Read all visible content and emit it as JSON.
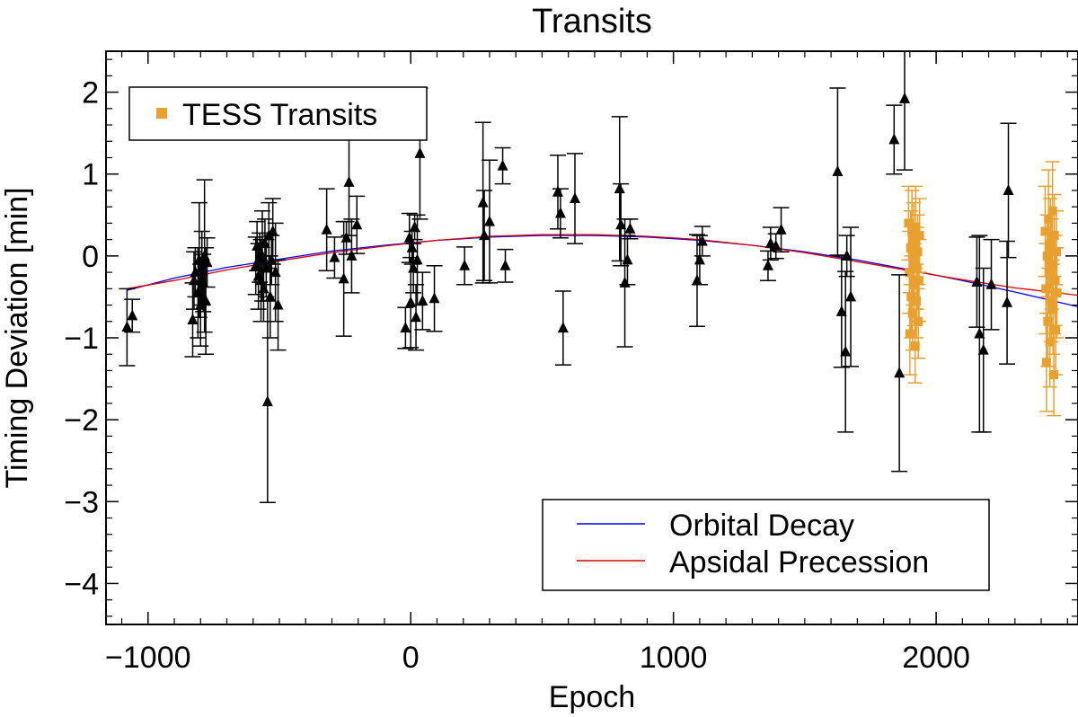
{
  "chart_data": {
    "type": "scatter",
    "title": "Transits",
    "xlabel": "Epoch",
    "ylabel": "Timing Deviation [min]",
    "xlim": [
      -1160,
      2540
    ],
    "ylim": [
      -4.5,
      2.5
    ],
    "xticks": [
      -1000,
      0,
      1000,
      2000
    ],
    "xtick_labels": [
      "−1000",
      "0",
      "1000",
      "2000"
    ],
    "xminor_step": 100,
    "yticks": [
      -4,
      -3,
      -2,
      -1,
      0,
      1,
      2
    ],
    "ytick_labels": [
      "−4",
      "−3",
      "−2",
      "−1",
      "0",
      "1",
      "2"
    ],
    "yminor_step": 0.2,
    "legend_top": {
      "label": "TESS Transits",
      "color": "#E8A030",
      "position": "top-left"
    },
    "legend_bottom": {
      "position": "bottom-right",
      "entries": [
        {
          "label": "Orbital Decay",
          "color": "#0000EE"
        },
        {
          "label": "Apsidal Precession",
          "color": "#DD0000"
        }
      ]
    },
    "series": [
      {
        "name": "Orbital Decay",
        "color": "#0000EE",
        "kind": "curve",
        "x": [
          -1080,
          -900,
          -700,
          -500,
          -300,
          -100,
          100,
          300,
          500,
          700,
          900,
          1100,
          1300,
          1500,
          1700,
          1900,
          2100,
          2300,
          2540
        ],
        "y": [
          -0.42,
          -0.27,
          -0.14,
          -0.04,
          0.06,
          0.13,
          0.19,
          0.23,
          0.25,
          0.25,
          0.23,
          0.19,
          0.13,
          0.05,
          -0.05,
          -0.17,
          -0.3,
          -0.44,
          -0.62
        ]
      },
      {
        "name": "Apsidal Precession",
        "color": "#DD0000",
        "kind": "curve",
        "x": [
          -1080,
          -900,
          -700,
          -500,
          -300,
          -100,
          100,
          300,
          500,
          700,
          900,
          1100,
          1300,
          1500,
          1700,
          1900,
          2100,
          2300,
          2540
        ],
        "y": [
          -0.4,
          -0.3,
          -0.17,
          -0.06,
          0.04,
          0.12,
          0.19,
          0.24,
          0.26,
          0.26,
          0.24,
          0.2,
          0.13,
          0.04,
          -0.07,
          -0.18,
          -0.29,
          -0.39,
          -0.48
        ]
      },
      {
        "name": "Transits",
        "color": "#000000",
        "marker": "triangle",
        "points": [
          {
            "x": -1080,
            "y": -0.87,
            "err": 0.47
          },
          {
            "x": -1060,
            "y": -0.73,
            "err": 0.2
          },
          {
            "x": -830,
            "y": -0.78,
            "err": 0.45
          },
          {
            "x": -825,
            "y": -0.3,
            "err": 0.35
          },
          {
            "x": -820,
            "y": -0.2,
            "err": 0.3
          },
          {
            "x": -810,
            "y": -0.45,
            "err": 0.55
          },
          {
            "x": -805,
            "y": -0.05,
            "err": 0.7
          },
          {
            "x": -800,
            "y": -0.6,
            "err": 0.5
          },
          {
            "x": -795,
            "y": -0.15,
            "err": 0.45
          },
          {
            "x": -790,
            "y": -0.33,
            "err": 0.35
          },
          {
            "x": -785,
            "y": 0.0,
            "err": 0.93
          },
          {
            "x": -780,
            "y": -0.55,
            "err": 0.65
          },
          {
            "x": -775,
            "y": -0.08,
            "err": 0.3
          },
          {
            "x": -590,
            "y": -0.12,
            "err": 0.35
          },
          {
            "x": -585,
            "y": 0.12,
            "err": 0.3
          },
          {
            "x": -580,
            "y": -0.25,
            "err": 0.4
          },
          {
            "x": -575,
            "y": -0.02,
            "err": 0.3
          },
          {
            "x": -570,
            "y": -0.3,
            "err": 0.5
          },
          {
            "x": -565,
            "y": 0.0,
            "err": 0.55
          },
          {
            "x": -560,
            "y": -0.4,
            "err": 0.4
          },
          {
            "x": -555,
            "y": 0.15,
            "err": 0.3
          },
          {
            "x": -550,
            "y": -0.15,
            "err": 0.35
          },
          {
            "x": -545,
            "y": -1.78,
            "err": 1.23
          },
          {
            "x": -540,
            "y": 0.25,
            "err": 0.4
          },
          {
            "x": -535,
            "y": -0.5,
            "err": 0.5
          },
          {
            "x": -530,
            "y": -0.05,
            "err": 0.3
          },
          {
            "x": -525,
            "y": 0.3,
            "err": 0.4
          },
          {
            "x": -515,
            "y": -0.2,
            "err": 0.6
          },
          {
            "x": -505,
            "y": -0.6,
            "err": 0.55
          },
          {
            "x": -320,
            "y": 0.32,
            "err": 0.5
          },
          {
            "x": -290,
            "y": -0.02,
            "err": 0.25
          },
          {
            "x": -255,
            "y": -0.28,
            "err": 0.7
          },
          {
            "x": -245,
            "y": 0.22,
            "err": 0.2
          },
          {
            "x": -235,
            "y": 0.9,
            "err": 0.65
          },
          {
            "x": -225,
            "y": 0.0,
            "err": 0.45
          },
          {
            "x": -205,
            "y": 0.38,
            "err": 0.35
          },
          {
            "x": -20,
            "y": -0.88,
            "err": 0.25
          },
          {
            "x": -5,
            "y": 0.22,
            "err": 0.3
          },
          {
            "x": 0,
            "y": -0.57,
            "err": 0.55
          },
          {
            "x": 5,
            "y": 0.1,
            "err": 0.2
          },
          {
            "x": 10,
            "y": -0.15,
            "err": 0.3
          },
          {
            "x": 15,
            "y": 0.35,
            "err": 0.15
          },
          {
            "x": 20,
            "y": -0.75,
            "err": 0.4
          },
          {
            "x": 25,
            "y": -0.05,
            "err": 0.55
          },
          {
            "x": 35,
            "y": 1.25,
            "err": 0.8
          },
          {
            "x": 45,
            "y": -0.55,
            "err": 0.35
          },
          {
            "x": 90,
            "y": -0.52,
            "err": 0.4
          },
          {
            "x": 205,
            "y": -0.12,
            "err": 0.23
          },
          {
            "x": 275,
            "y": 0.65,
            "err": 0.98
          },
          {
            "x": 280,
            "y": 0.25,
            "err": 0.55
          },
          {
            "x": 300,
            "y": 0.42,
            "err": 0.75
          },
          {
            "x": 350,
            "y": 1.1,
            "err": 0.22
          },
          {
            "x": 360,
            "y": -0.12,
            "err": 0.2
          },
          {
            "x": 560,
            "y": 0.78,
            "err": 0.45
          },
          {
            "x": 570,
            "y": 0.52,
            "err": 0.3
          },
          {
            "x": 580,
            "y": -0.88,
            "err": 0.45
          },
          {
            "x": 625,
            "y": 0.7,
            "err": 0.55
          },
          {
            "x": 795,
            "y": 0.82,
            "err": 0.88
          },
          {
            "x": 800,
            "y": 0.38,
            "err": 0.5
          },
          {
            "x": 815,
            "y": -0.33,
            "err": 0.78
          },
          {
            "x": 825,
            "y": -0.05,
            "err": 0.3
          },
          {
            "x": 835,
            "y": 0.33,
            "err": 0.12
          },
          {
            "x": 1090,
            "y": -0.3,
            "err": 0.56
          },
          {
            "x": 1100,
            "y": -0.05,
            "err": 0.3
          },
          {
            "x": 1110,
            "y": 0.18,
            "err": 0.18
          },
          {
            "x": 1360,
            "y": -0.12,
            "err": 0.18
          },
          {
            "x": 1370,
            "y": 0.15,
            "err": 0.2
          },
          {
            "x": 1390,
            "y": 0.12,
            "err": 0.15
          },
          {
            "x": 1410,
            "y": 0.32,
            "err": 0.27
          },
          {
            "x": 1625,
            "y": 1.03,
            "err": 1.02
          },
          {
            "x": 1640,
            "y": -0.68,
            "err": 0.68
          },
          {
            "x": 1660,
            "y": 0.0,
            "err": 0.25
          },
          {
            "x": 1655,
            "y": -1.17,
            "err": 0.98
          },
          {
            "x": 1675,
            "y": -0.5,
            "err": 0.85
          },
          {
            "x": 1840,
            "y": 1.42,
            "err": 0.42
          },
          {
            "x": 1860,
            "y": -1.43,
            "err": 1.2
          },
          {
            "x": 1880,
            "y": 1.92,
            "err": 0.87
          },
          {
            "x": 2155,
            "y": -0.32,
            "err": 0.55
          },
          {
            "x": 2165,
            "y": -0.95,
            "err": 1.2
          },
          {
            "x": 2180,
            "y": -1.15,
            "err": 1.0
          },
          {
            "x": 2210,
            "y": -0.35,
            "err": 0.55
          },
          {
            "x": 2270,
            "y": -0.57,
            "err": 0.75
          },
          {
            "x": 2275,
            "y": 0.8,
            "err": 0.82
          }
        ]
      },
      {
        "name": "TESS Transits",
        "color": "#E8A030",
        "marker": "square",
        "points": [
          {
            "x": 1895,
            "y": 0.4,
            "err": 0.45
          },
          {
            "x": 1898,
            "y": -0.2,
            "err": 0.5
          },
          {
            "x": 1900,
            "y": -0.95,
            "err": 0.5
          },
          {
            "x": 1903,
            "y": 0.1,
            "err": 0.45
          },
          {
            "x": 1905,
            "y": -0.5,
            "err": 0.5
          },
          {
            "x": 1908,
            "y": 0.3,
            "err": 0.5
          },
          {
            "x": 1910,
            "y": -0.7,
            "err": 0.45
          },
          {
            "x": 1912,
            "y": -0.1,
            "err": 0.5
          },
          {
            "x": 1915,
            "y": 0.2,
            "err": 0.45
          },
          {
            "x": 1917,
            "y": -0.35,
            "err": 0.5
          },
          {
            "x": 1920,
            "y": -1.1,
            "err": 0.45
          },
          {
            "x": 1922,
            "y": 0.35,
            "err": 0.5
          },
          {
            "x": 1925,
            "y": -0.55,
            "err": 0.45
          },
          {
            "x": 1927,
            "y": -0.15,
            "err": 0.5
          },
          {
            "x": 1930,
            "y": 0.05,
            "err": 0.45
          },
          {
            "x": 1932,
            "y": -0.8,
            "err": 0.45
          },
          {
            "x": 1935,
            "y": -0.3,
            "err": 0.5
          },
          {
            "x": 1937,
            "y": 0.25,
            "err": 0.45
          },
          {
            "x": 2415,
            "y": 0.3,
            "err": 0.55
          },
          {
            "x": 2418,
            "y": -0.4,
            "err": 0.55
          },
          {
            "x": 2420,
            "y": -1.3,
            "err": 0.6
          },
          {
            "x": 2423,
            "y": 0.0,
            "err": 0.5
          },
          {
            "x": 2425,
            "y": -0.8,
            "err": 0.55
          },
          {
            "x": 2428,
            "y": 0.45,
            "err": 0.6
          },
          {
            "x": 2430,
            "y": -0.2,
            "err": 0.5
          },
          {
            "x": 2433,
            "y": -1.05,
            "err": 0.55
          },
          {
            "x": 2435,
            "y": 0.15,
            "err": 0.55
          },
          {
            "x": 2438,
            "y": -0.55,
            "err": 0.5
          },
          {
            "x": 2440,
            "y": -0.1,
            "err": 0.55
          },
          {
            "x": 2443,
            "y": 0.55,
            "err": 0.6
          },
          {
            "x": 2445,
            "y": -0.65,
            "err": 0.55
          },
          {
            "x": 2448,
            "y": -1.45,
            "err": 0.5
          },
          {
            "x": 2450,
            "y": 0.25,
            "err": 0.5
          },
          {
            "x": 2453,
            "y": -0.3,
            "err": 0.55
          },
          {
            "x": 2455,
            "y": -0.9,
            "err": 0.55
          },
          {
            "x": 2458,
            "y": 0.05,
            "err": 0.5
          },
          {
            "x": 2460,
            "y": -0.45,
            "err": 0.55
          }
        ]
      }
    ]
  }
}
